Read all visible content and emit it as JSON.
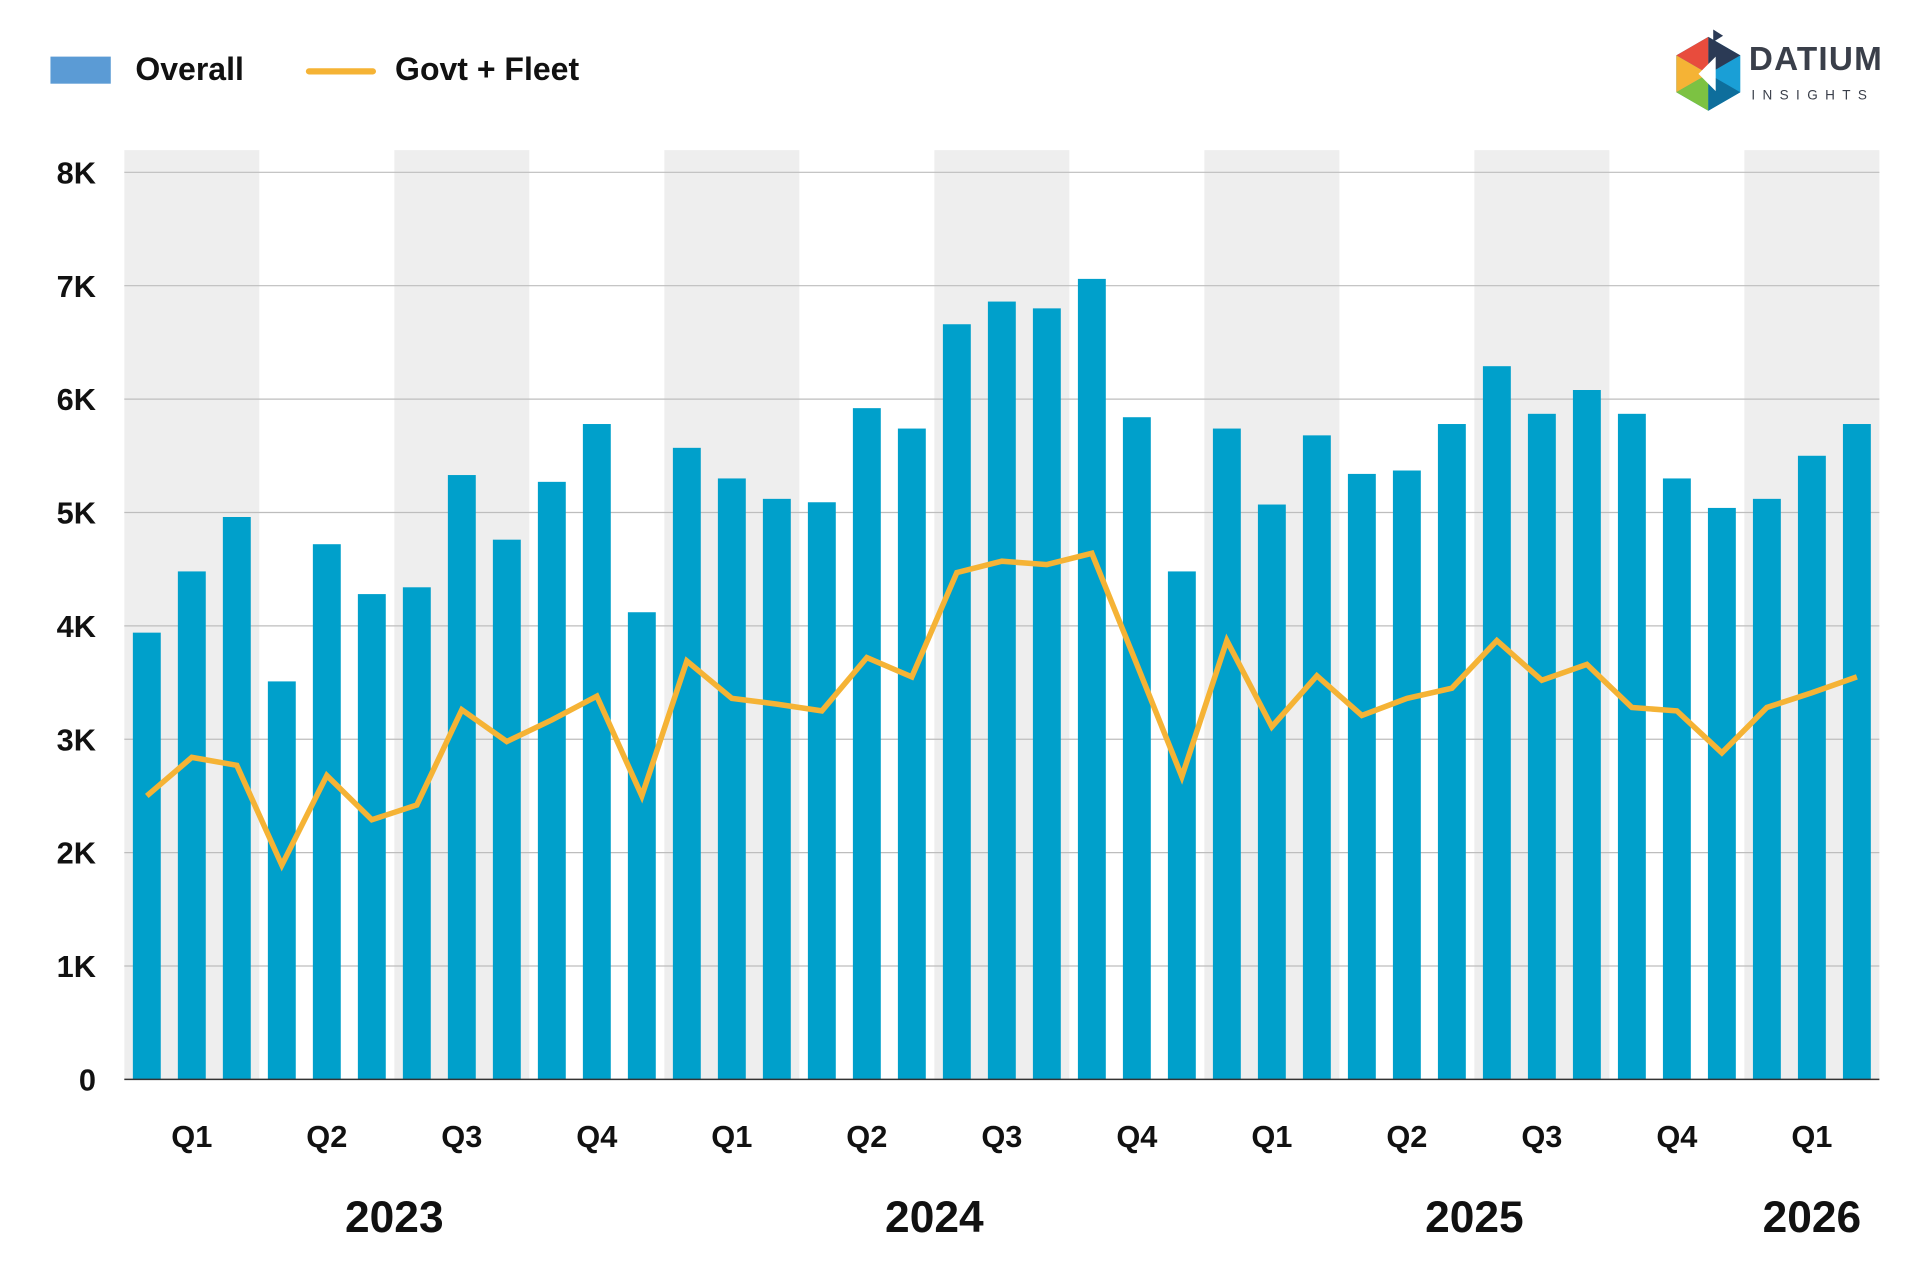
{
  "logo": {
    "title": "DATIUM",
    "subtitle": "INSIGHTS"
  },
  "colors": {
    "bar": "#00A0CB",
    "line": "#F5B335",
    "legend_bar": "#5B9BD5",
    "band": "#EEEEEE",
    "grid": "#BDBDBD"
  },
  "chart_data": {
    "type": "bar",
    "title": "",
    "xlabel": "",
    "ylabel": "",
    "ylim": [
      0,
      8000
    ],
    "yticks": [
      0,
      1000,
      2000,
      3000,
      4000,
      5000,
      6000,
      7000,
      8000
    ],
    "ytick_labels": [
      "0",
      "1K",
      "2K",
      "3K",
      "4K",
      "5K",
      "6K",
      "7K",
      "8K"
    ],
    "grid": true,
    "legend": {
      "placement": "top-left",
      "entries": [
        "Overall",
        "Govt + Fleet"
      ]
    },
    "x": [
      "2023-01",
      "2023-02",
      "2023-03",
      "2023-04",
      "2023-05",
      "2023-06",
      "2023-07",
      "2023-08",
      "2023-09",
      "2023-10",
      "2023-11",
      "2023-12",
      "2024-01",
      "2024-02",
      "2024-03",
      "2024-04",
      "2024-05",
      "2024-06",
      "2024-07",
      "2024-08",
      "2024-09",
      "2024-10",
      "2024-11",
      "2024-12",
      "2025-01",
      "2025-02",
      "2025-03",
      "2025-04",
      "2025-05",
      "2025-06",
      "2025-07",
      "2025-08",
      "2025-09",
      "2025-10",
      "2025-11",
      "2025-12",
      "2026-01",
      "2026-02",
      "2026-03"
    ],
    "quarter_labels": [
      "Q1",
      "Q2",
      "Q3",
      "Q4",
      "Q1",
      "Q2",
      "Q3",
      "Q4",
      "Q1",
      "Q2",
      "Q3",
      "Q4",
      "Q1"
    ],
    "year_labels": [
      {
        "label": "2023",
        "start": 0,
        "count": 12
      },
      {
        "label": "2024",
        "start": 12,
        "count": 12
      },
      {
        "label": "2025",
        "start": 24,
        "count": 12
      },
      {
        "label": "2026",
        "start": 36,
        "count": 3
      }
    ],
    "series": [
      {
        "name": "Overall",
        "type": "bar",
        "values": [
          3940,
          4480,
          4960,
          3510,
          4720,
          4280,
          4340,
          5330,
          4760,
          5270,
          5780,
          4120,
          5570,
          5300,
          5120,
          5090,
          5920,
          5740,
          6660,
          6860,
          6800,
          7060,
          5840,
          4480,
          5740,
          5070,
          5680,
          5340,
          5370,
          5780,
          6290,
          5870,
          6080,
          5870,
          5300,
          5040,
          5120,
          5500,
          5780
        ]
      },
      {
        "name": "Govt + Fleet",
        "type": "line",
        "values": [
          2500,
          2840,
          2770,
          1890,
          2680,
          2290,
          2420,
          3260,
          2980,
          3170,
          3380,
          2500,
          3690,
          3360,
          3310,
          3250,
          3720,
          3550,
          4470,
          4570,
          4540,
          4640,
          3660,
          2670,
          3870,
          3110,
          3560,
          3210,
          3360,
          3450,
          3870,
          3520,
          3660,
          3280,
          3250,
          2880,
          3280,
          3410,
          3550
        ]
      }
    ]
  }
}
